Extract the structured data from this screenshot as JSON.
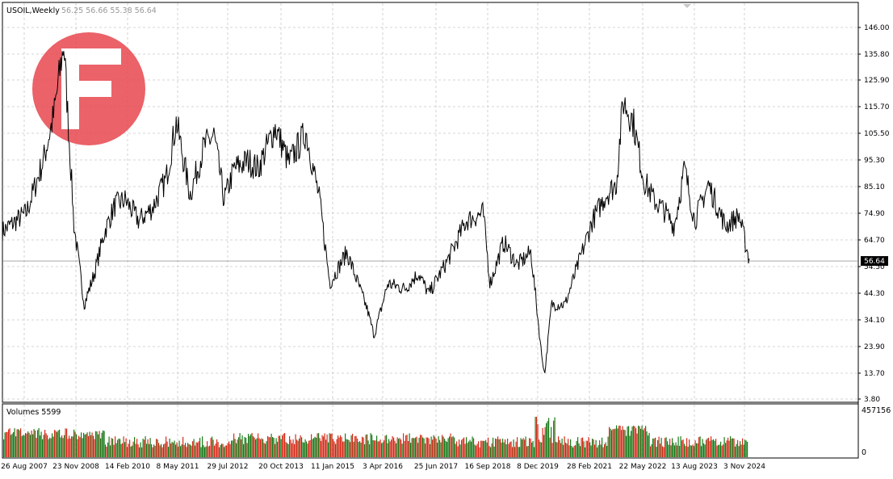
{
  "header": {
    "symbol_timeframe": "USOIL,Weekly",
    "ohlc": "56.25 56.66 55.38 56.64"
  },
  "volume_panel": {
    "label": "Volumes 5599",
    "axis_top": "457156",
    "axis_bottom": "0"
  },
  "current_price_tag": "56.64",
  "watermark_icon": "fxopen-logo-icon",
  "colors": {
    "price_line": "#000000",
    "volume_up": "#1a7a1a",
    "volume_down": "#d62c1a",
    "grid": "#c8c8c8",
    "watermark": "#e8474f"
  },
  "chart_data": [
    {
      "type": "line",
      "title": "",
      "y_ticks": [
        "146.00",
        "135.80",
        "125.90",
        "115.70",
        "105.50",
        "95.30",
        "85.10",
        "74.90",
        "64.70",
        "54.50",
        "44.30",
        "34.10",
        "23.90",
        "13.70",
        "3.80"
      ],
      "x_ticks": [
        "26 Aug 2007",
        "23 Nov 2008",
        "14 Feb 2010",
        "8 May 2011",
        "29 Jul 2012",
        "20 Oct 2013",
        "11 Jan 2015",
        "3 Apr 2016",
        "25 Jun 2017",
        "16 Sep 2018",
        "8 Dec 2019",
        "28 Feb 2021",
        "22 May 2022",
        "13 Aug 2023",
        "3 Nov 2024"
      ],
      "ylim": [
        3.8,
        146.0
      ],
      "grid": true,
      "series": [
        {
          "x": [
            "2007-01",
            "2007-08",
            "2008-01",
            "2008-04",
            "2008-07",
            "2008-10",
            "2009-01",
            "2009-04",
            "2009-07",
            "2009-10",
            "2010-01",
            "2010-05",
            "2010-09",
            "2011-01",
            "2011-04",
            "2011-08",
            "2011-12",
            "2012-03",
            "2012-06",
            "2012-09",
            "2013-01",
            "2013-04",
            "2013-09",
            "2014-01",
            "2014-06",
            "2014-10",
            "2015-01",
            "2015-06",
            "2015-12",
            "2016-02",
            "2016-06",
            "2016-11",
            "2017-03",
            "2017-06",
            "2017-12",
            "2018-05",
            "2018-10",
            "2018-12",
            "2019-04",
            "2019-08",
            "2019-12",
            "2020-03",
            "2020-04",
            "2020-06",
            "2020-10",
            "2021-01",
            "2021-06",
            "2021-10",
            "2022-01",
            "2022-03",
            "2022-06",
            "2022-09",
            "2022-12",
            "2023-03",
            "2023-06",
            "2023-09",
            "2023-12",
            "2024-04",
            "2024-09",
            "2025-01",
            "2025-04"
          ],
          "values": [
            68,
            75,
            95,
            112,
            140,
            70,
            40,
            52,
            68,
            78,
            80,
            72,
            77,
            88,
            110,
            82,
            100,
            105,
            80,
            92,
            95,
            92,
            108,
            94,
            106,
            80,
            48,
            60,
            38,
            28,
            48,
            46,
            52,
            44,
            58,
            72,
            75,
            48,
            64,
            55,
            60,
            22,
            13,
            40,
            40,
            52,
            72,
            82,
            86,
            118,
            110,
            88,
            80,
            76,
            70,
            92,
            72,
            86,
            70,
            74,
            57
          ]
        }
      ]
    },
    {
      "type": "bar",
      "title": "",
      "ylim": [
        0,
        457156
      ],
      "series": [
        {
          "name": "Volumes",
          "values": []
        }
      ]
    }
  ]
}
